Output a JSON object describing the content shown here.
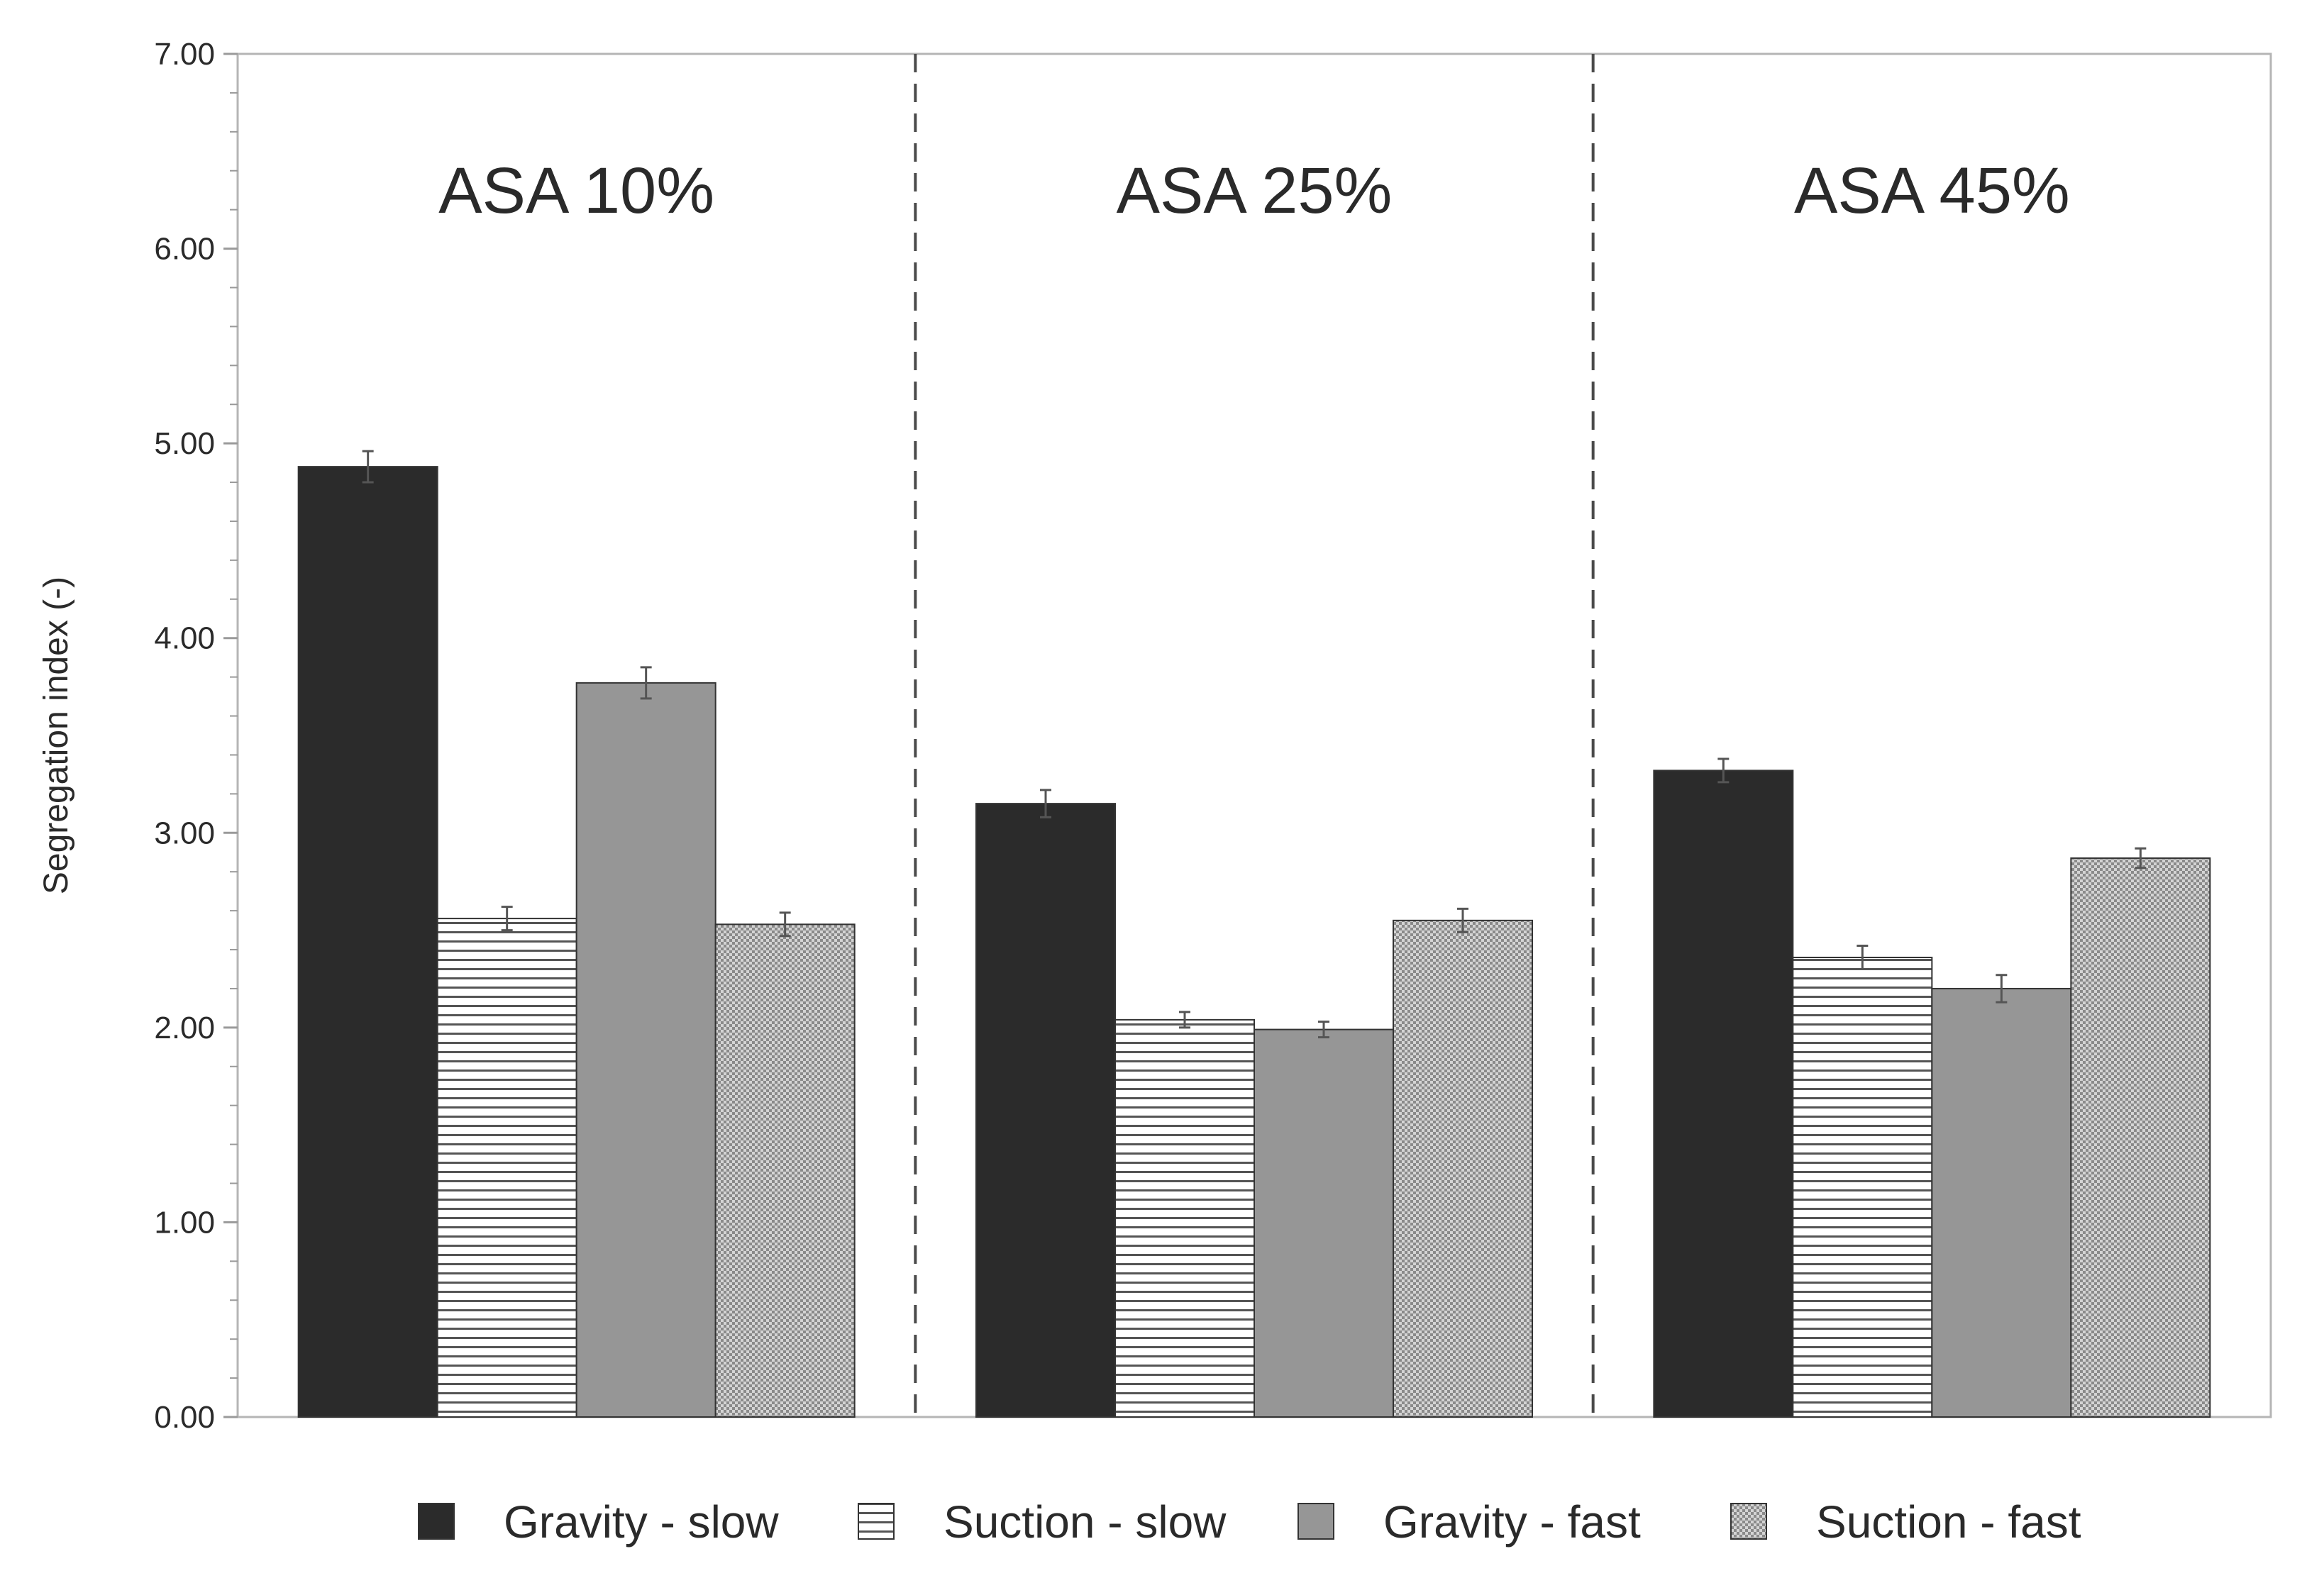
{
  "chart_data": {
    "type": "bar",
    "title": "",
    "xlabel": "",
    "ylabel": "Segregation index (-)",
    "ylim": [
      0,
      7
    ],
    "yticks": [
      "0.00",
      "1.00",
      "2.00",
      "3.00",
      "4.00",
      "5.00",
      "6.00",
      "7.00"
    ],
    "groups": [
      "ASA 10%",
      "ASA 25%",
      "ASA 45%"
    ],
    "series": [
      {
        "name": "Gravity - slow",
        "pattern": "solid-dark",
        "color": "#2b2b2b",
        "values": [
          4.88,
          3.15,
          3.32
        ],
        "errors": [
          0.08,
          0.07,
          0.06
        ]
      },
      {
        "name": "Suction - slow",
        "pattern": "horizontal-lines",
        "color": "#ffffff",
        "values": [
          2.56,
          2.04,
          2.36
        ],
        "errors": [
          0.06,
          0.04,
          0.06
        ]
      },
      {
        "name": "Gravity - fast",
        "pattern": "solid-gray",
        "color": "#969696",
        "values": [
          3.77,
          1.99,
          2.2
        ],
        "errors": [
          0.08,
          0.04,
          0.07
        ]
      },
      {
        "name": "Suction - fast",
        "pattern": "dotted",
        "color": "#c8c8c8",
        "values": [
          2.53,
          2.55,
          2.87
        ],
        "errors": [
          0.06,
          0.06,
          0.05
        ]
      }
    ],
    "grid": false,
    "legend_position": "bottom"
  }
}
